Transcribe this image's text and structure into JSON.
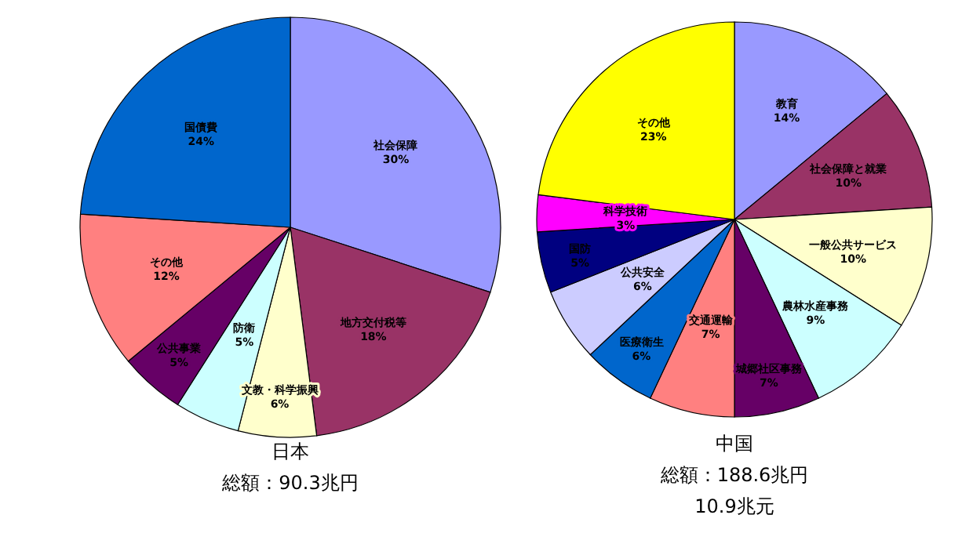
{
  "chart_data": [
    {
      "type": "pie",
      "title": "日本",
      "subtitle": "総額：90.3兆円",
      "categories": [
        "社会保障",
        "地方交付税等",
        "文教・科学振興",
        "防衛",
        "公共事業",
        "その他",
        "国債費"
      ],
      "values": [
        30,
        18,
        6,
        5,
        5,
        12,
        24
      ],
      "value_labels": [
        "30%",
        "18%",
        "6%",
        "5%",
        "5%",
        "12%",
        "24%"
      ],
      "colors": [
        "#9999ff",
        "#993366",
        "#ffffcc",
        "#ccffff",
        "#660066",
        "#ff8080",
        "#0066cc"
      ]
    },
    {
      "type": "pie",
      "title": "中国",
      "subtitle": "総額：188.6兆円",
      "annotations": [
        "10.9兆元"
      ],
      "categories": [
        "教育",
        "社会保障と就業",
        "一般公共サービス",
        "農林水産事務",
        "城郷社区事務",
        "交通運輸",
        "医療衛生",
        "公共安全",
        "国防",
        "科学技術",
        "その他"
      ],
      "values": [
        14,
        10,
        10,
        9,
        7,
        7,
        6,
        6,
        5,
        3,
        23
      ],
      "value_labels": [
        "14%",
        "10%",
        "10%",
        "9%",
        "7%",
        "7%",
        "6%",
        "6%",
        "5%",
        "3%",
        "23%"
      ],
      "colors": [
        "#9999ff",
        "#993366",
        "#ffffcc",
        "#ccffff",
        "#660066",
        "#ff8080",
        "#0066cc",
        "#ccccff",
        "#000080",
        "#ff00ff",
        "#ffff00"
      ]
    }
  ]
}
